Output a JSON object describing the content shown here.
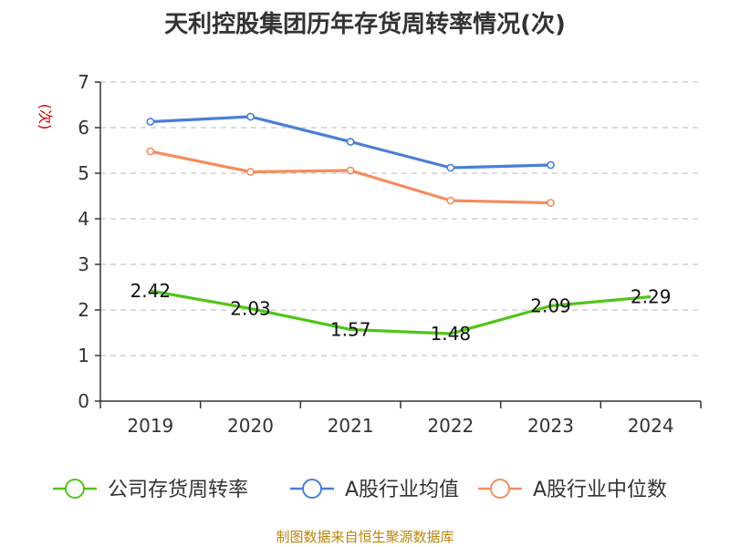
{
  "chart_data": {
    "type": "line",
    "title": "天利控股集团历年存货周转率情况(次)",
    "ylabel": "(次)",
    "xlabel": "",
    "categories": [
      "2019",
      "2020",
      "2021",
      "2022",
      "2023",
      "2024"
    ],
    "ylim": [
      0,
      7
    ],
    "yticks": [
      0,
      1,
      2,
      3,
      4,
      5,
      6,
      7
    ],
    "grid": true,
    "legend_position": "bottom",
    "series": [
      {
        "name": "公司存货周转率",
        "color": "#52c41a",
        "values": [
          2.42,
          2.03,
          1.57,
          1.48,
          2.09,
          2.29
        ],
        "labels": [
          "2.42",
          "2.03",
          "1.57",
          "1.48",
          "2.09",
          "2.29"
        ]
      },
      {
        "name": "A股行业均值",
        "color": "#4a7fd6",
        "values": [
          6.13,
          6.24,
          5.69,
          5.12,
          5.18,
          null
        ]
      },
      {
        "name": "A股行业中位数",
        "color": "#f48d5e",
        "values": [
          5.48,
          5.03,
          5.06,
          4.4,
          4.35,
          null
        ]
      }
    ]
  },
  "source_note": "制图数据来自恒生聚源数据库",
  "colors": {
    "ylabel": "#cc0000",
    "source": "#b8860b",
    "grid": "#c8c8c8",
    "axis": "#333333"
  }
}
